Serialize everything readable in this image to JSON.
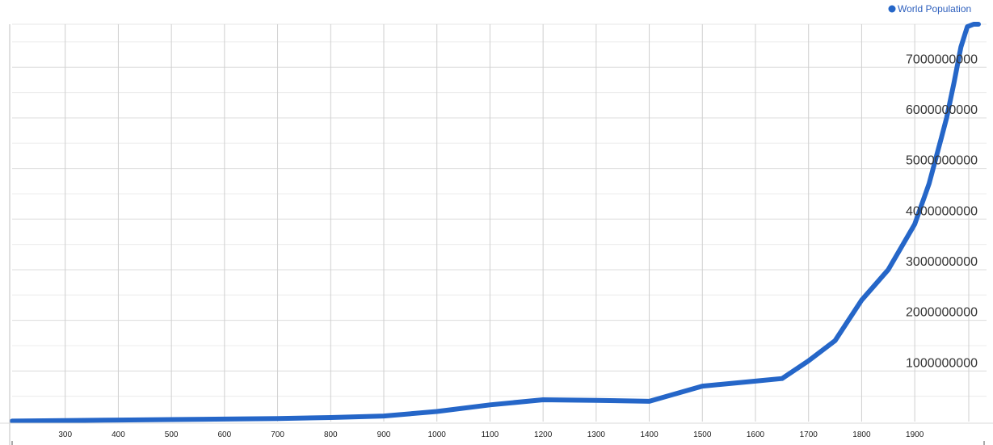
{
  "chart_data": {
    "type": "line",
    "title": "",
    "xlabel": "",
    "ylabel": "",
    "legend": {
      "position": "top-right",
      "entries": [
        "World Population"
      ]
    },
    "grid": true,
    "xlim": [
      200,
      2020
    ],
    "ylim": [
      0,
      7850000000
    ],
    "x_ticks": [
      300,
      400,
      500,
      600,
      700,
      800,
      900,
      1000,
      1100,
      1200,
      1300,
      1400,
      1500,
      1600,
      1700,
      1800,
      1900
    ],
    "x_tick_labels": [
      "300",
      "400",
      "500",
      "600",
      "700",
      "800",
      "900",
      "1000",
      "1100",
      "1200",
      "1300",
      "1400",
      "1500",
      "1600",
      "1700",
      "1800",
      "1900"
    ],
    "y_ticks": [
      1000000000,
      2000000000,
      3000000000,
      4000000000,
      5000000000,
      6000000000,
      7000000000
    ],
    "y_tick_labels": [
      "1000000000",
      "2000000000",
      "3000000000",
      "4000000000",
      "5000000000",
      "6000000000",
      "7000000000"
    ],
    "series": [
      {
        "name": "World Population",
        "color": "#2566c8",
        "x": [
          200,
          300,
          400,
          500,
          600,
          700,
          800,
          900,
          1000,
          1100,
          1200,
          1300,
          1400,
          1500,
          1600,
          1650,
          1700,
          1750,
          1800,
          1850,
          1900,
          1927,
          1950,
          1960,
          1974,
          1987,
          1999,
          2011,
          2020
        ],
        "y": [
          10000000,
          20000000,
          30000000,
          40000000,
          50000000,
          60000000,
          80000000,
          110000000,
          200000000,
          330000000,
          430000000,
          420000000,
          400000000,
          700000000,
          800000000,
          850000000,
          1200000000,
          1600000000,
          2400000000,
          3000000000,
          3900000000,
          4700000000,
          5600000000,
          6000000000,
          6700000000,
          7400000000,
          7800000000,
          7850000000,
          7850000000
        ]
      }
    ]
  }
}
